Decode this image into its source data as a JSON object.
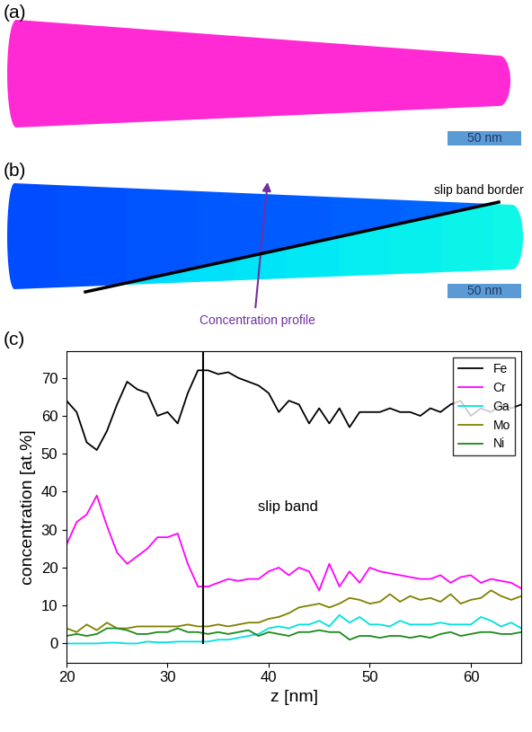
{
  "panels": {
    "a": {
      "label": "(a)",
      "scale_bar": "50 nm"
    },
    "b": {
      "label": "(b)",
      "scale_bar": "50 nm",
      "border_text": "slip band border",
      "arrow_text": "Concentration profile"
    }
  },
  "chart_data": {
    "label": "(c)",
    "type": "line",
    "x_label": "z [nm]",
    "y_label": "concentration [at.%]",
    "x": [
      20,
      21,
      22,
      23,
      24,
      25,
      26,
      27,
      28,
      29,
      30,
      31,
      32,
      33,
      34,
      35,
      36,
      37,
      38,
      39,
      40,
      41,
      42,
      43,
      44,
      45,
      46,
      47,
      48,
      49,
      50,
      51,
      52,
      53,
      54,
      55,
      56,
      57,
      58,
      59,
      60,
      61,
      62,
      63,
      64,
      65
    ],
    "series": [
      {
        "name": "Fe",
        "color": "#000000",
        "values": [
          64,
          61,
          53,
          51,
          56,
          63,
          69,
          67,
          66,
          60,
          61,
          58,
          66,
          72,
          72,
          71,
          71.5,
          70,
          69,
          68,
          66,
          61,
          64,
          63,
          58,
          62,
          58,
          62,
          57,
          61,
          61,
          61,
          62,
          61,
          61,
          60,
          62,
          61,
          63,
          64,
          60,
          62,
          61,
          63,
          62,
          63
        ]
      },
      {
        "name": "Cr",
        "color": "#ff00ff",
        "values": [
          26,
          32,
          34,
          39,
          31,
          24,
          21,
          23,
          25,
          28,
          28,
          29,
          21,
          15,
          15,
          16,
          17,
          16.5,
          17,
          17,
          19,
          20,
          18,
          20,
          19,
          14,
          21,
          15,
          19,
          16,
          20,
          19,
          18.5,
          18,
          17.5,
          17,
          17,
          18,
          16,
          17.5,
          18,
          16,
          17,
          16.5,
          16,
          14.5
        ]
      },
      {
        "name": "Ga",
        "color": "#00e0e0",
        "values": [
          0,
          0,
          0,
          0,
          0.2,
          0.2,
          0,
          0,
          0.5,
          0.3,
          0.3,
          0.5,
          0.5,
          0.5,
          0.5,
          1,
          1,
          1.5,
          2,
          2.5,
          4,
          4.5,
          4,
          5,
          5,
          6,
          4.5,
          7.5,
          5.5,
          7,
          5,
          5,
          4.5,
          6,
          5,
          5,
          5,
          5.5,
          5,
          5,
          5,
          7,
          6,
          4.5,
          5.5,
          4
        ]
      },
      {
        "name": "Mo",
        "color": "#808000",
        "values": [
          4,
          3,
          5,
          3.5,
          5.5,
          4,
          4,
          4.5,
          4.5,
          4.5,
          4.5,
          4.5,
          5,
          4.5,
          4.5,
          5,
          4.5,
          5,
          5.5,
          5.5,
          6.5,
          7,
          8,
          9.5,
          10,
          10.5,
          9.5,
          10.5,
          12,
          11.5,
          10.5,
          11,
          13,
          11,
          12.5,
          11.5,
          12,
          11,
          13,
          10.5,
          11.5,
          12,
          14,
          12.5,
          11.5,
          12.5
        ]
      },
      {
        "name": "Ni",
        "color": "#1a8a1a",
        "values": [
          2,
          2.5,
          2,
          2.5,
          4,
          4,
          3.5,
          2.5,
          2.5,
          3,
          3,
          4,
          3,
          3,
          2.5,
          3,
          2.5,
          3,
          3.5,
          2,
          3,
          2.5,
          2,
          3,
          3,
          3.5,
          3,
          3,
          1,
          2,
          2,
          1.5,
          2,
          2,
          1.5,
          2,
          1.5,
          2.5,
          3,
          2,
          2.5,
          3,
          3,
          2.5,
          2.5,
          3
        ]
      }
    ],
    "xlim": [
      20,
      65
    ],
    "ylim": [
      -5,
      77
    ],
    "xticks": [
      20,
      30,
      40,
      50,
      60
    ],
    "yticks": [
      0,
      10,
      20,
      30,
      40,
      50,
      60,
      70
    ],
    "legend": "upper right",
    "annotations": [
      {
        "text": "slip band",
        "x": 33.5,
        "y": [
          0,
          77
        ]
      }
    ]
  }
}
